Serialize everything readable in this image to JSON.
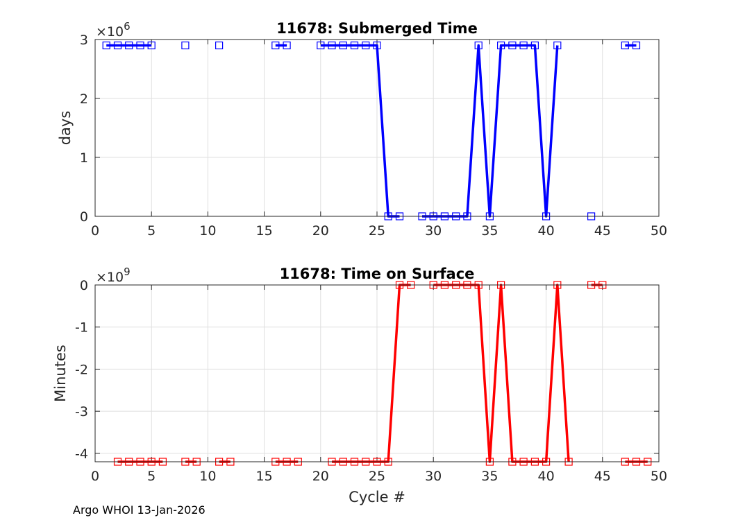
{
  "footer": "Argo WHOI 13-Jan-2026",
  "chart_data": [
    {
      "type": "line",
      "title": "11678: Submerged Time",
      "xlabel": "",
      "ylabel": "days",
      "exponent_base": "×10",
      "exponent_power": "6",
      "xlim": [
        0,
        50
      ],
      "ylim": [
        0,
        3
      ],
      "x_ticks": [
        0,
        5,
        10,
        15,
        20,
        25,
        30,
        35,
        40,
        45,
        50
      ],
      "y_ticks": [
        0,
        1,
        2,
        3
      ],
      "grid": true,
      "color": "#0000ff",
      "marker": "square",
      "segments": [
        [
          [
            1,
            2.9
          ],
          [
            2,
            2.9
          ],
          [
            3,
            2.9
          ],
          [
            4,
            2.9
          ],
          [
            5,
            2.9
          ]
        ],
        [
          [
            8,
            2.9
          ]
        ],
        [
          [
            11,
            2.9
          ]
        ],
        [
          [
            16,
            2.9
          ],
          [
            17,
            2.9
          ]
        ],
        [
          [
            20,
            2.9
          ],
          [
            21,
            2.9
          ],
          [
            22,
            2.9
          ],
          [
            23,
            2.9
          ],
          [
            24,
            2.9
          ],
          [
            25,
            2.9
          ],
          [
            26,
            0
          ],
          [
            27,
            0
          ]
        ],
        [
          [
            29,
            0
          ],
          [
            30,
            0
          ],
          [
            31,
            0
          ],
          [
            32,
            0
          ],
          [
            33,
            0
          ],
          [
            34,
            2.9
          ],
          [
            35,
            0
          ],
          [
            36,
            2.9
          ],
          [
            37,
            2.9
          ],
          [
            38,
            2.9
          ],
          [
            39,
            2.9
          ],
          [
            40,
            0
          ],
          [
            41,
            2.9
          ]
        ],
        [
          [
            44,
            0
          ]
        ],
        [
          [
            47,
            2.9
          ],
          [
            48,
            2.9
          ]
        ]
      ]
    },
    {
      "type": "line",
      "title": "11678: Time on Surface",
      "xlabel": "Cycle #",
      "ylabel": "Minutes",
      "exponent_base": "×10",
      "exponent_power": "9",
      "xlim": [
        0,
        50
      ],
      "ylim": [
        -4.2,
        0
      ],
      "x_ticks": [
        0,
        5,
        10,
        15,
        20,
        25,
        30,
        35,
        40,
        45,
        50
      ],
      "y_ticks": [
        0,
        -1,
        -2,
        -3,
        -4
      ],
      "grid": true,
      "color": "#ff0000",
      "marker": "square",
      "segments": [
        [
          [
            2,
            -4.2
          ],
          [
            3,
            -4.2
          ],
          [
            4,
            -4.2
          ],
          [
            5,
            -4.2
          ],
          [
            6,
            -4.2
          ]
        ],
        [
          [
            8,
            -4.2
          ],
          [
            9,
            -4.2
          ]
        ],
        [
          [
            11,
            -4.2
          ],
          [
            12,
            -4.2
          ]
        ],
        [
          [
            16,
            -4.2
          ],
          [
            17,
            -4.2
          ],
          [
            18,
            -4.2
          ]
        ],
        [
          [
            21,
            -4.2
          ],
          [
            22,
            -4.2
          ],
          [
            23,
            -4.2
          ],
          [
            24,
            -4.2
          ],
          [
            25,
            -4.2
          ],
          [
            26,
            -4.2
          ],
          [
            27,
            0
          ],
          [
            28,
            0
          ]
        ],
        [
          [
            30,
            0
          ],
          [
            31,
            0
          ],
          [
            32,
            0
          ],
          [
            33,
            0
          ],
          [
            34,
            0
          ],
          [
            35,
            -4.2
          ],
          [
            36,
            0
          ],
          [
            37,
            -4.2
          ],
          [
            38,
            -4.2
          ],
          [
            39,
            -4.2
          ],
          [
            40,
            -4.2
          ],
          [
            41,
            0
          ],
          [
            42,
            -4.2
          ]
        ],
        [
          [
            44,
            0
          ],
          [
            45,
            0
          ]
        ],
        [
          [
            47,
            -4.2
          ],
          [
            48,
            -4.2
          ],
          [
            49,
            -4.2
          ]
        ]
      ]
    }
  ]
}
